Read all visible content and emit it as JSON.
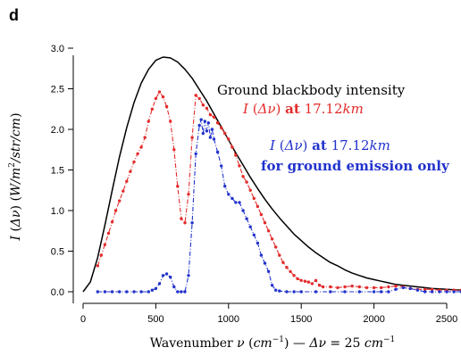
{
  "panel_label": "d",
  "chart_data": {
    "type": "line",
    "title": "",
    "xlabel": "Wavenumber ν (cm⁻¹) — Δν = 25 cm⁻¹",
    "ylabel": "I (Δν) (W/m²/str/cm)",
    "xlim": [
      -60,
      2600
    ],
    "ylim": [
      -0.05,
      3.0
    ],
    "xticks": [
      0,
      500,
      1000,
      1500,
      2000,
      2500
    ],
    "yticks": [
      0.0,
      0.5,
      1.0,
      1.5,
      2.0,
      2.5,
      3.0
    ],
    "xtick_labels": [
      "0",
      "500",
      "1000",
      "1500",
      "2000",
      "2500"
    ],
    "ytick_labels": [
      "0.0",
      "0.5",
      "1.0",
      "1.5",
      "2.0",
      "2.5",
      "3.0"
    ],
    "grid": false,
    "legend": "annotations",
    "series": [
      {
        "name": "Ground blackbody intensity",
        "color": "#000000",
        "style": "line",
        "x": [
          0,
          50,
          100,
          150,
          200,
          250,
          300,
          350,
          400,
          450,
          500,
          550,
          600,
          650,
          700,
          750,
          800,
          850,
          900,
          950,
          1000,
          1050,
          1100,
          1150,
          1200,
          1250,
          1300,
          1350,
          1400,
          1450,
          1500,
          1550,
          1600,
          1650,
          1700,
          1750,
          1800,
          1850,
          1900,
          1950,
          2000,
          2050,
          2100,
          2150,
          2200,
          2250,
          2300,
          2350,
          2400,
          2450,
          2500,
          2550,
          2600
        ],
        "values": [
          0,
          0.12,
          0.42,
          0.82,
          1.25,
          1.66,
          2.02,
          2.33,
          2.57,
          2.74,
          2.85,
          2.89,
          2.88,
          2.83,
          2.74,
          2.63,
          2.49,
          2.35,
          2.19,
          2.03,
          1.87,
          1.71,
          1.56,
          1.41,
          1.27,
          1.14,
          1.02,
          0.91,
          0.81,
          0.71,
          0.63,
          0.55,
          0.48,
          0.42,
          0.36,
          0.32,
          0.27,
          0.23,
          0.2,
          0.17,
          0.15,
          0.13,
          0.11,
          0.09,
          0.08,
          0.07,
          0.06,
          0.05,
          0.04,
          0.035,
          0.03,
          0.025,
          0.02
        ]
      },
      {
        "name": "I (Δν) at 17.12km",
        "color": "#e32b2b",
        "style": "dot-dash",
        "x": [
          100,
          125,
          150,
          175,
          200,
          225,
          250,
          275,
          300,
          325,
          350,
          375,
          400,
          425,
          450,
          475,
          500,
          525,
          550,
          575,
          600,
          625,
          650,
          675,
          700,
          725,
          750,
          775,
          800,
          825,
          850,
          875,
          900,
          925,
          950,
          975,
          1000,
          1025,
          1050,
          1075,
          1100,
          1125,
          1150,
          1175,
          1200,
          1225,
          1250,
          1275,
          1300,
          1325,
          1350,
          1375,
          1400,
          1425,
          1450,
          1475,
          1500,
          1525,
          1550,
          1575,
          1600,
          1625,
          1650,
          1700,
          1750,
          1800,
          1850,
          1900,
          1950,
          2000,
          2050,
          2100,
          2150,
          2200,
          2250,
          2300,
          2350,
          2400,
          2450,
          2500,
          2550,
          2600
        ],
        "values": [
          0.32,
          0.45,
          0.58,
          0.72,
          0.86,
          1.0,
          1.12,
          1.24,
          1.36,
          1.48,
          1.6,
          1.7,
          1.78,
          1.9,
          2.1,
          2.25,
          2.38,
          2.46,
          2.4,
          2.28,
          2.1,
          1.75,
          1.3,
          0.9,
          0.85,
          1.2,
          1.9,
          2.42,
          2.38,
          2.3,
          2.26,
          2.18,
          2.15,
          2.08,
          2.02,
          1.95,
          1.88,
          1.78,
          1.68,
          1.55,
          1.42,
          1.35,
          1.25,
          1.15,
          1.05,
          0.95,
          0.85,
          0.75,
          0.65,
          0.55,
          0.45,
          0.36,
          0.3,
          0.25,
          0.2,
          0.16,
          0.14,
          0.13,
          0.12,
          0.1,
          0.14,
          0.08,
          0.06,
          0.06,
          0.05,
          0.06,
          0.07,
          0.06,
          0.05,
          0.05,
          0.05,
          0.06,
          0.07,
          0.06,
          0.04,
          0.03,
          0.03,
          0.03,
          0.02,
          0.02,
          0.02,
          0.02
        ]
      },
      {
        "name": "I (Δν) at 17.12km for ground emission only",
        "color": "#2233cc",
        "style": "dot-dash",
        "x": [
          100,
          150,
          200,
          250,
          300,
          350,
          400,
          450,
          475,
          500,
          525,
          550,
          575,
          600,
          625,
          650,
          675,
          700,
          725,
          750,
          775,
          800,
          812,
          825,
          837,
          850,
          862,
          875,
          887,
          900,
          925,
          950,
          975,
          1000,
          1025,
          1050,
          1075,
          1100,
          1125,
          1150,
          1175,
          1200,
          1225,
          1250,
          1275,
          1300,
          1325,
          1350,
          1400,
          1450,
          1500,
          1600,
          1700,
          1800,
          1900,
          2000,
          2050,
          2100,
          2150,
          2200,
          2250,
          2300,
          2350,
          2400,
          2450,
          2500,
          2550,
          2600
        ],
        "values": [
          0.0,
          0.0,
          0.0,
          0.0,
          0.0,
          0.0,
          0.0,
          0.0,
          0.02,
          0.04,
          0.1,
          0.2,
          0.22,
          0.18,
          0.06,
          0.0,
          0.0,
          0.0,
          0.2,
          0.85,
          1.7,
          2.05,
          2.12,
          1.95,
          2.1,
          1.98,
          2.08,
          1.9,
          2.0,
          1.88,
          1.72,
          1.55,
          1.3,
          1.2,
          1.15,
          1.1,
          1.1,
          1.0,
          0.9,
          0.8,
          0.7,
          0.6,
          0.45,
          0.35,
          0.25,
          0.08,
          0.02,
          0.01,
          0.0,
          0.0,
          0.0,
          0.0,
          0.0,
          0.0,
          0.0,
          0.0,
          0.0,
          0.0,
          0.03,
          0.05,
          0.04,
          0.02,
          0.0,
          0.0,
          0.0,
          0.0,
          0.0,
          0.0
        ]
      }
    ],
    "annotations": [
      {
        "text": "Ground blackbody intensity",
        "color": "#000000",
        "series": 0
      },
      {
        "text": "I (Δν) at 17.12km",
        "color": "#e32b2b",
        "series": 1
      },
      {
        "text": "I (Δν) at 17.12km",
        "color": "#2233cc",
        "series": 2
      },
      {
        "text": "for ground emission only",
        "color": "#2233cc",
        "series": 2
      }
    ]
  }
}
